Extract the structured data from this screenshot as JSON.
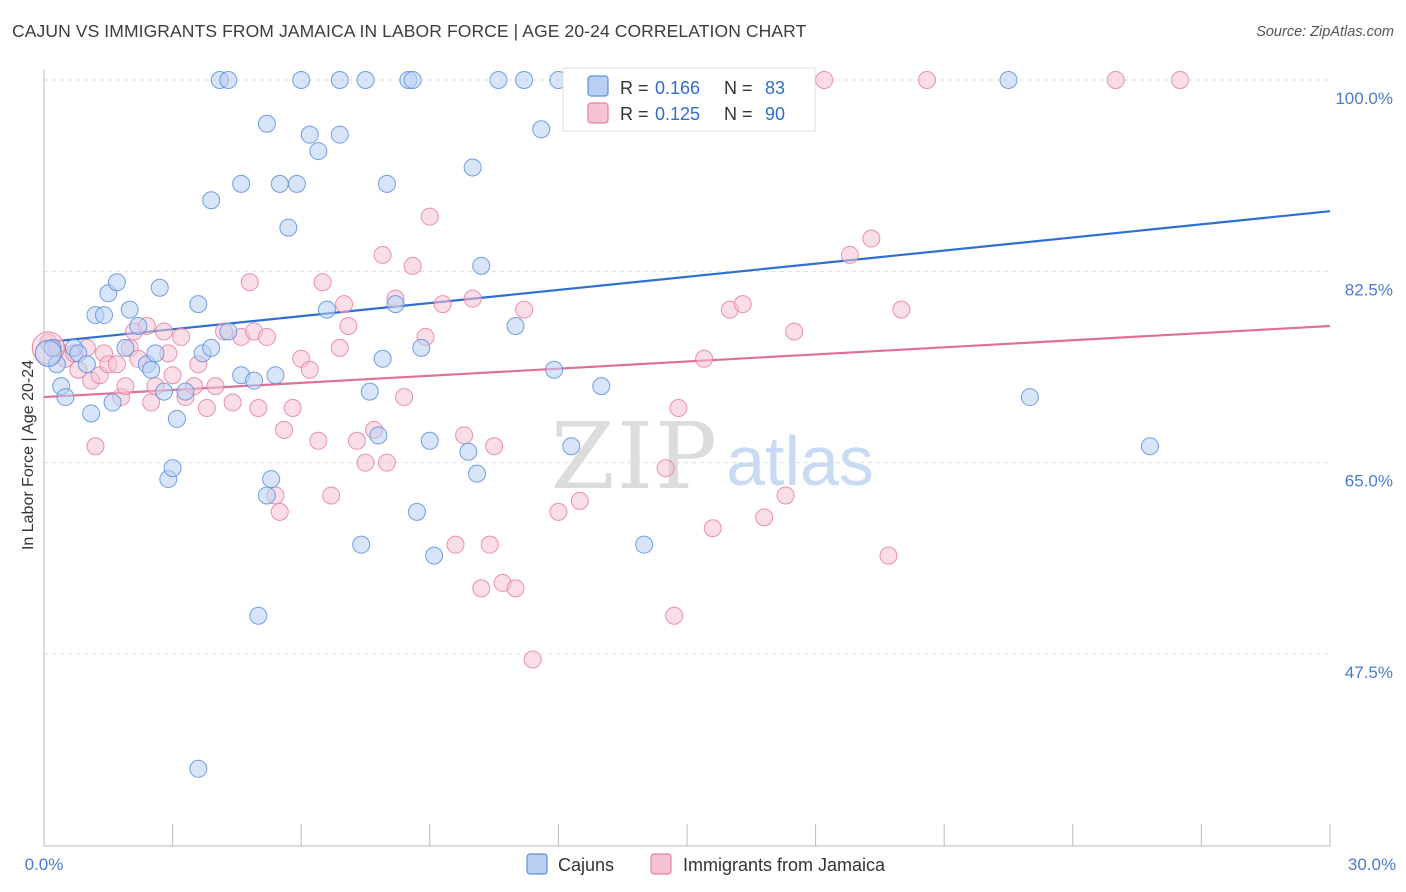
{
  "title": "CAJUN VS IMMIGRANTS FROM JAMAICA IN LABOR FORCE | AGE 20-24 CORRELATION CHART",
  "source": "Source: ZipAtlas.com",
  "watermark": {
    "zip": "ZIP",
    "atlas": "atlas"
  },
  "legend": {
    "r_label": "R =",
    "n_label": "N =",
    "entries": [
      {
        "r": "0.166",
        "n": "83",
        "color": "#5b8fe0"
      },
      {
        "r": "0.125",
        "n": "90",
        "color": "#e87fa3"
      }
    ]
  },
  "colors": {
    "blue": "#5b8fe0",
    "blue_fill": "#b8cff3",
    "blue_line": "#2e6fd0",
    "pink": "#e87fa3",
    "pink_fill": "#f6c3d4",
    "pink_line": "#e0709a"
  },
  "chart_data": {
    "type": "scatter",
    "title": "CAJUN VS IMMIGRANTS FROM JAMAICA IN LABOR FORCE | AGE 20-24 CORRELATION CHART",
    "xlabel": "",
    "ylabel": "In Labor Force | Age 20-24",
    "xlim": [
      0,
      30
    ],
    "ylim": [
      34.0,
      103.0
    ],
    "x_tick_labels": [
      "0.0%",
      "30.0%"
    ],
    "y_ticks": [
      47.5,
      65.0,
      82.5,
      100.0
    ],
    "y_tick_labels": [
      "47.5%",
      "65.0%",
      "82.5%",
      "100.0%"
    ],
    "grid": true,
    "legend_position": "top-center",
    "series": [
      {
        "name": "Cajuns",
        "color": "#5b8fe0",
        "trend": {
          "x": [
            0,
            30
          ],
          "y": [
            76.0,
            88.0
          ]
        },
        "points": [
          [
            0.2,
            75.5
          ],
          [
            0.4,
            72.0
          ],
          [
            0.5,
            71.0
          ],
          [
            0.7,
            75.5
          ],
          [
            0.8,
            75.0
          ],
          [
            1.0,
            74.0
          ],
          [
            1.1,
            69.5
          ],
          [
            1.2,
            78.5
          ],
          [
            1.4,
            78.5
          ],
          [
            1.5,
            80.5
          ],
          [
            1.6,
            70.5
          ],
          [
            1.7,
            81.5
          ],
          [
            1.9,
            75.5
          ],
          [
            2.0,
            79.0
          ],
          [
            2.2,
            77.5
          ],
          [
            2.4,
            74.0
          ],
          [
            2.5,
            73.5
          ],
          [
            2.6,
            75.0
          ],
          [
            2.7,
            81.0
          ],
          [
            2.8,
            71.5
          ],
          [
            2.9,
            63.5
          ],
          [
            3.0,
            64.5
          ],
          [
            3.1,
            69.0
          ],
          [
            3.3,
            71.5
          ],
          [
            3.6,
            79.5
          ],
          [
            3.7,
            75.0
          ],
          [
            3.9,
            89.0
          ],
          [
            3.9,
            75.5
          ],
          [
            4.1,
            100.0
          ],
          [
            4.3,
            100.0
          ],
          [
            4.3,
            77.0
          ],
          [
            4.6,
            73.0
          ],
          [
            4.6,
            90.5
          ],
          [
            4.9,
            72.5
          ],
          [
            5.0,
            51.0
          ],
          [
            5.2,
            62.0
          ],
          [
            5.2,
            96.0
          ],
          [
            5.4,
            73.0
          ],
          [
            5.5,
            90.5
          ],
          [
            5.7,
            86.5
          ],
          [
            5.9,
            90.5
          ],
          [
            6.0,
            100.0
          ],
          [
            6.2,
            95.0
          ],
          [
            6.4,
            93.5
          ],
          [
            6.6,
            79.0
          ],
          [
            6.9,
            100.0
          ],
          [
            6.9,
            95.0
          ],
          [
            7.4,
            57.5
          ],
          [
            7.5,
            100.0
          ],
          [
            7.6,
            71.5
          ],
          [
            7.8,
            67.5
          ],
          [
            7.9,
            74.5
          ],
          [
            8.0,
            90.5
          ],
          [
            8.2,
            79.5
          ],
          [
            8.5,
            100.0
          ],
          [
            8.6,
            100.0
          ],
          [
            8.7,
            60.5
          ],
          [
            8.8,
            75.5
          ],
          [
            9.0,
            67.0
          ],
          [
            9.1,
            56.5
          ],
          [
            9.9,
            66.0
          ],
          [
            10.0,
            92.0
          ],
          [
            10.1,
            64.0
          ],
          [
            10.2,
            83.0
          ],
          [
            10.6,
            100.0
          ],
          [
            11.0,
            77.5
          ],
          [
            11.2,
            100.0
          ],
          [
            11.6,
            95.5
          ],
          [
            11.9,
            73.5
          ],
          [
            12.0,
            100.0
          ],
          [
            12.3,
            66.5
          ],
          [
            13.0,
            72.0
          ],
          [
            13.2,
            100.0
          ],
          [
            14.0,
            57.5
          ],
          [
            14.2,
            100.0
          ],
          [
            3.6,
            37.0
          ],
          [
            22.5,
            100.0
          ],
          [
            23.0,
            71.0
          ],
          [
            25.8,
            66.5
          ],
          [
            12.8,
            100.0
          ],
          [
            13.5,
            100.0
          ],
          [
            5.3,
            63.5
          ],
          [
            0.3,
            74.0
          ]
        ]
      },
      {
        "name": "Immigrants from Jamaica",
        "color": "#e87fa3",
        "trend": {
          "x": [
            0,
            30
          ],
          "y": [
            71.0,
            77.5
          ]
        },
        "points": [
          [
            0.1,
            76.0
          ],
          [
            0.3,
            75.5
          ],
          [
            0.5,
            74.5
          ],
          [
            0.7,
            75.0
          ],
          [
            0.8,
            73.5
          ],
          [
            1.0,
            75.5
          ],
          [
            1.1,
            72.5
          ],
          [
            1.2,
            66.5
          ],
          [
            1.3,
            73.0
          ],
          [
            1.4,
            75.0
          ],
          [
            1.5,
            74.0
          ],
          [
            1.7,
            74.0
          ],
          [
            1.8,
            71.0
          ],
          [
            1.9,
            72.0
          ],
          [
            2.0,
            75.5
          ],
          [
            2.1,
            77.0
          ],
          [
            2.2,
            74.5
          ],
          [
            2.4,
            77.5
          ],
          [
            2.5,
            70.5
          ],
          [
            2.6,
            72.0
          ],
          [
            2.8,
            77.0
          ],
          [
            2.9,
            75.0
          ],
          [
            3.0,
            73.0
          ],
          [
            3.2,
            76.5
          ],
          [
            3.3,
            71.0
          ],
          [
            3.5,
            72.0
          ],
          [
            3.6,
            74.0
          ],
          [
            3.8,
            70.0
          ],
          [
            4.0,
            72.0
          ],
          [
            4.2,
            77.0
          ],
          [
            4.4,
            70.5
          ],
          [
            4.6,
            76.5
          ],
          [
            4.8,
            81.5
          ],
          [
            4.9,
            77.0
          ],
          [
            5.0,
            70.0
          ],
          [
            5.2,
            76.5
          ],
          [
            5.4,
            62.0
          ],
          [
            5.5,
            60.5
          ],
          [
            5.6,
            68.0
          ],
          [
            5.8,
            70.0
          ],
          [
            6.0,
            74.5
          ],
          [
            6.2,
            73.5
          ],
          [
            6.4,
            67.0
          ],
          [
            6.5,
            81.5
          ],
          [
            6.7,
            62.0
          ],
          [
            6.9,
            75.5
          ],
          [
            7.0,
            79.5
          ],
          [
            7.1,
            77.5
          ],
          [
            7.3,
            67.0
          ],
          [
            7.5,
            65.0
          ],
          [
            7.7,
            68.0
          ],
          [
            7.9,
            84.0
          ],
          [
            8.0,
            65.0
          ],
          [
            8.2,
            80.0
          ],
          [
            8.4,
            71.0
          ],
          [
            8.6,
            83.0
          ],
          [
            8.9,
            76.5
          ],
          [
            9.0,
            87.5
          ],
          [
            9.3,
            79.5
          ],
          [
            9.6,
            57.5
          ],
          [
            9.8,
            67.5
          ],
          [
            10.0,
            80.0
          ],
          [
            10.2,
            53.5
          ],
          [
            10.4,
            57.5
          ],
          [
            10.5,
            66.5
          ],
          [
            10.7,
            54.0
          ],
          [
            11.0,
            53.5
          ],
          [
            11.2,
            79.0
          ],
          [
            11.4,
            47.0
          ],
          [
            12.0,
            60.5
          ],
          [
            12.5,
            61.5
          ],
          [
            13.0,
            100.0
          ],
          [
            14.5,
            64.5
          ],
          [
            14.7,
            51.0
          ],
          [
            14.8,
            70.0
          ],
          [
            15.4,
            74.5
          ],
          [
            15.6,
            59.0
          ],
          [
            16.0,
            79.0
          ],
          [
            16.3,
            79.5
          ],
          [
            16.8,
            60.0
          ],
          [
            17.3,
            62.0
          ],
          [
            17.5,
            77.0
          ],
          [
            18.2,
            100.0
          ],
          [
            18.8,
            84.0
          ],
          [
            19.3,
            85.5
          ],
          [
            19.7,
            56.5
          ],
          [
            20.0,
            79.0
          ],
          [
            20.6,
            100.0
          ],
          [
            25.0,
            100.0
          ],
          [
            26.5,
            100.0
          ]
        ]
      }
    ]
  },
  "bottom_legend": {
    "items": [
      "Cajuns",
      "Immigrants from Jamaica"
    ]
  }
}
